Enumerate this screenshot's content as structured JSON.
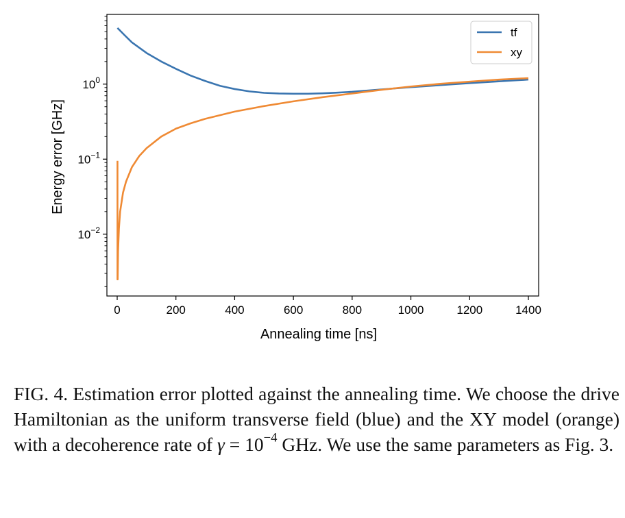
{
  "chart_data": {
    "type": "line",
    "title": "",
    "xlabel": "Annealing time [ns]",
    "ylabel": "Energy error [GHz]",
    "xlim": [
      -35,
      1435
    ],
    "ylim": [
      0.0015,
      8.5
    ],
    "yscale": "log",
    "x_ticks": [
      0,
      200,
      400,
      600,
      800,
      1000,
      1200,
      1400
    ],
    "x_tick_labels": [
      "0",
      "200",
      "400",
      "600",
      "800",
      "1000",
      "1200",
      "1400"
    ],
    "y_ticks": [
      {
        "value": 1,
        "base": "10",
        "exp": "0"
      },
      {
        "value": 0.1,
        "base": "10",
        "exp": "−1"
      },
      {
        "value": 0.01,
        "base": "10",
        "exp": "−2"
      }
    ],
    "grid": false,
    "legend_position": "top-right",
    "series": [
      {
        "name": "tf",
        "color": "#3a75b0",
        "x": [
          1,
          25,
          50,
          100,
          150,
          200,
          250,
          300,
          350,
          400,
          450,
          500,
          550,
          600,
          650,
          700,
          750,
          800,
          900,
          1000,
          1100,
          1200,
          1300,
          1400
        ],
        "y": [
          5.6,
          4.5,
          3.6,
          2.6,
          2.0,
          1.6,
          1.3,
          1.1,
          0.95,
          0.86,
          0.8,
          0.765,
          0.75,
          0.745,
          0.745,
          0.755,
          0.77,
          0.79,
          0.85,
          0.91,
          0.97,
          1.03,
          1.09,
          1.15
        ]
      },
      {
        "name": "xy",
        "color": "#ef8a34",
        "x": [
          1,
          1,
          1.6,
          3,
          6,
          10,
          20,
          30,
          50,
          75,
          100,
          150,
          200,
          250,
          300,
          400,
          500,
          600,
          700,
          800,
          900,
          1000,
          1100,
          1200,
          1300,
          1400
        ],
        "y": [
          0.095,
          0.0025,
          0.0025,
          0.006,
          0.012,
          0.02,
          0.036,
          0.05,
          0.078,
          0.11,
          0.14,
          0.2,
          0.255,
          0.3,
          0.345,
          0.43,
          0.51,
          0.59,
          0.67,
          0.75,
          0.84,
          0.93,
          1.01,
          1.08,
          1.15,
          1.2
        ]
      }
    ]
  },
  "caption": {
    "part1": "FIG. 4. Estimation error plotted against the annealing time. We choose the drive Hamiltonian as the uniform transverse field (blue) and the XY model (orange) with a decoherence rate of ",
    "gamma_symbol": "γ",
    "equals": " = 10",
    "exponent": "−4",
    "part2": " GHz. We use the same parameters as Fig. 3."
  }
}
